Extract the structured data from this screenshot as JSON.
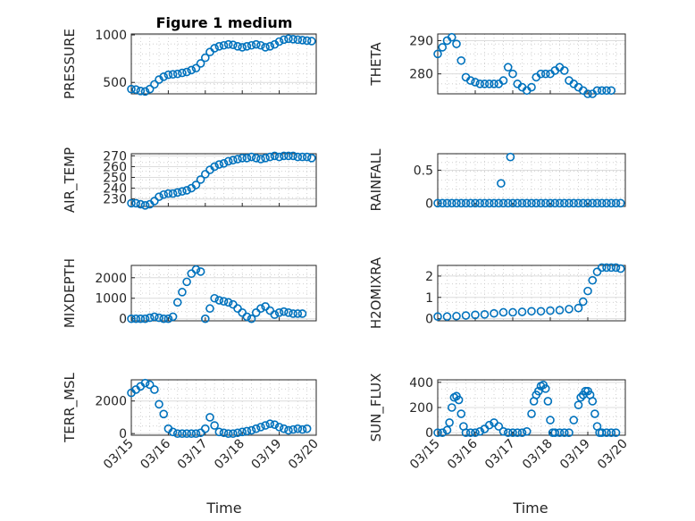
{
  "figure": {
    "title": "Figure 1 medium",
    "xlabel": "Time",
    "marker_color": "#0072BD",
    "xticks": [
      "03/15",
      "03/16",
      "03/17",
      "03/18",
      "03/19",
      "03/20"
    ]
  },
  "chart_data": [
    {
      "type": "scatter",
      "ylabel": "PRESSURE",
      "yticks": [
        500,
        1000
      ],
      "ylim": [
        380,
        1010
      ],
      "xlim": [
        0,
        4
      ],
      "grid": true,
      "x": [
        0,
        0.1,
        0.2,
        0.3,
        0.4,
        0.5,
        0.6,
        0.7,
        0.8,
        0.9,
        1.0,
        1.1,
        1.2,
        1.3,
        1.4,
        1.5,
        1.6,
        1.7,
        1.8,
        1.9,
        2.0,
        2.1,
        2.2,
        2.3,
        2.4,
        2.5,
        2.6,
        2.7,
        2.8,
        2.9,
        3.0,
        3.1,
        3.2,
        3.3,
        3.4,
        3.5,
        3.6,
        3.7,
        3.8,
        3.9
      ],
      "y": [
        430,
        425,
        410,
        405,
        430,
        480,
        530,
        560,
        580,
        585,
        590,
        600,
        610,
        630,
        650,
        700,
        760,
        820,
        860,
        880,
        890,
        900,
        895,
        880,
        870,
        880,
        890,
        900,
        890,
        870,
        880,
        900,
        930,
        950,
        960,
        955,
        950,
        945,
        940,
        935
      ]
    },
    {
      "type": "scatter",
      "ylabel": "THETA",
      "yticks": [
        280,
        290
      ],
      "ylim": [
        274,
        292
      ],
      "xlim": [
        0,
        4
      ],
      "grid": true,
      "x": [
        0,
        0.1,
        0.2,
        0.3,
        0.4,
        0.5,
        0.6,
        0.7,
        0.8,
        0.9,
        1.0,
        1.1,
        1.2,
        1.3,
        1.4,
        1.5,
        1.6,
        1.7,
        1.8,
        1.9,
        2.0,
        2.1,
        2.2,
        2.3,
        2.4,
        2.5,
        2.6,
        2.7,
        2.8,
        2.9,
        3.0,
        3.1,
        3.2,
        3.3,
        3.4,
        3.5,
        3.6,
        3.7
      ],
      "y": [
        286,
        288,
        290,
        291,
        289,
        284,
        279,
        278,
        277.5,
        277,
        277,
        277,
        277,
        277,
        278,
        282,
        280,
        277,
        276,
        275,
        276,
        279,
        280,
        280,
        280,
        281,
        282,
        281,
        278,
        277,
        276,
        275,
        274,
        274,
        275,
        275,
        275,
        275
      ]
    },
    {
      "type": "scatter",
      "ylabel": "AIR_TEMP",
      "yticks": [
        230,
        240,
        250,
        260,
        270
      ],
      "ylim": [
        223,
        272
      ],
      "xlim": [
        0,
        4
      ],
      "grid": true,
      "x": [
        0,
        0.1,
        0.2,
        0.3,
        0.4,
        0.5,
        0.6,
        0.7,
        0.8,
        0.9,
        1.0,
        1.1,
        1.2,
        1.3,
        1.4,
        1.5,
        1.6,
        1.7,
        1.8,
        1.9,
        2.0,
        2.1,
        2.2,
        2.3,
        2.4,
        2.5,
        2.6,
        2.7,
        2.8,
        2.9,
        3.0,
        3.1,
        3.2,
        3.3,
        3.4,
        3.5,
        3.6,
        3.7,
        3.8,
        3.9
      ],
      "y": [
        226,
        226,
        225,
        224,
        225,
        228,
        232,
        234,
        235,
        235,
        236,
        237,
        238,
        240,
        243,
        248,
        253,
        257,
        260,
        262,
        263,
        265,
        266,
        267,
        268,
        268,
        269,
        268,
        267,
        268,
        269,
        270,
        269,
        270,
        270,
        270,
        269,
        269,
        269,
        268
      ]
    },
    {
      "type": "scatter",
      "ylabel": "RAINFALL",
      "yticks": [
        0,
        0.5
      ],
      "ylim": [
        -0.05,
        0.75
      ],
      "xlim": [
        0,
        4
      ],
      "grid": true,
      "x": [
        0,
        0.1,
        0.2,
        0.3,
        0.4,
        0.5,
        0.6,
        0.7,
        0.8,
        0.9,
        1.0,
        1.1,
        1.2,
        1.3,
        1.4,
        1.5,
        1.6,
        1.7,
        1.8,
        1.9,
        2.0,
        2.1,
        2.2,
        2.3,
        2.4,
        2.5,
        2.6,
        2.7,
        2.8,
        2.9,
        3.0,
        3.1,
        3.2,
        3.3,
        3.4,
        3.5,
        3.6,
        3.7,
        3.8,
        3.9,
        1.35,
        1.55
      ],
      "y": [
        0,
        0,
        0,
        0,
        0,
        0,
        0,
        0,
        0,
        0,
        0,
        0,
        0,
        0,
        0,
        0,
        0,
        0,
        0,
        0,
        0,
        0,
        0,
        0,
        0,
        0,
        0,
        0,
        0,
        0,
        0,
        0,
        0,
        0,
        0,
        0,
        0,
        0,
        0,
        0,
        0.3,
        0.7
      ]
    },
    {
      "type": "scatter",
      "ylabel": "MIXDEPTH",
      "yticks": [
        0,
        1000,
        2000
      ],
      "ylim": [
        -100,
        2600
      ],
      "xlim": [
        0,
        4
      ],
      "grid": true,
      "x": [
        0,
        0.1,
        0.2,
        0.3,
        0.4,
        0.5,
        0.6,
        0.7,
        0.8,
        0.9,
        1.0,
        1.1,
        1.2,
        1.3,
        1.4,
        1.5,
        1.6,
        1.7,
        1.8,
        1.9,
        2.0,
        2.1,
        2.2,
        2.3,
        2.4,
        2.5,
        2.6,
        2.7,
        2.8,
        2.9,
        3.0,
        3.1,
        3.2,
        3.3,
        3.4,
        3.5,
        3.6,
        3.7
      ],
      "y": [
        0,
        0,
        0,
        0,
        50,
        100,
        50,
        0,
        0,
        100,
        800,
        1300,
        1800,
        2200,
        2400,
        2300,
        0,
        500,
        1000,
        900,
        850,
        800,
        700,
        500,
        300,
        100,
        0,
        300,
        500,
        600,
        400,
        200,
        300,
        350,
        300,
        250,
        250,
        250
      ]
    },
    {
      "type": "scatter",
      "ylabel": "H2OMIXRA",
      "yticks": [
        0,
        1,
        2
      ],
      "ylim": [
        -0.1,
        2.5
      ],
      "xlim": [
        0,
        4
      ],
      "grid": true,
      "x": [
        0,
        0.2,
        0.4,
        0.6,
        0.8,
        1.0,
        1.2,
        1.4,
        1.6,
        1.8,
        2.0,
        2.2,
        2.4,
        2.6,
        2.8,
        3.0,
        3.1,
        3.2,
        3.3,
        3.4,
        3.5,
        3.6,
        3.7,
        3.8,
        3.9
      ],
      "y": [
        0.1,
        0.1,
        0.12,
        0.15,
        0.18,
        0.2,
        0.25,
        0.3,
        0.3,
        0.32,
        0.35,
        0.35,
        0.38,
        0.4,
        0.45,
        0.5,
        0.8,
        1.3,
        1.8,
        2.2,
        2.4,
        2.4,
        2.4,
        2.4,
        2.35
      ]
    },
    {
      "type": "scatter",
      "ylabel": "TERR_MSL",
      "yticks": [
        0,
        2000
      ],
      "ylim": [
        -100,
        3300
      ],
      "xlim": [
        0,
        4
      ],
      "grid": true,
      "x": [
        0,
        0.1,
        0.2,
        0.3,
        0.4,
        0.5,
        0.6,
        0.7,
        0.8,
        0.9,
        1.0,
        1.1,
        1.2,
        1.3,
        1.4,
        1.5,
        1.6,
        1.7,
        1.8,
        1.9,
        2.0,
        2.1,
        2.2,
        2.3,
        2.4,
        2.5,
        2.6,
        2.7,
        2.8,
        2.9,
        3.0,
        3.1,
        3.2,
        3.3,
        3.4,
        3.5,
        3.6,
        3.7,
        3.8
      ],
      "y": [
        2500,
        2700,
        2900,
        3100,
        3000,
        2700,
        1800,
        1200,
        300,
        100,
        0,
        0,
        0,
        0,
        0,
        50,
        300,
        1000,
        500,
        100,
        50,
        0,
        0,
        50,
        100,
        150,
        200,
        300,
        400,
        500,
        600,
        550,
        400,
        300,
        200,
        250,
        300,
        250,
        300
      ]
    },
    {
      "type": "scatter",
      "ylabel": "SUN_FLUX",
      "yticks": [
        0,
        200,
        400
      ],
      "ylim": [
        -20,
        420
      ],
      "xlim": [
        0,
        4
      ],
      "grid": true,
      "x": [
        0,
        0.1,
        0.2,
        0.25,
        0.3,
        0.35,
        0.4,
        0.45,
        0.5,
        0.55,
        0.6,
        0.7,
        0.8,
        0.9,
        1.0,
        1.1,
        1.2,
        1.3,
        1.4,
        1.5,
        1.6,
        1.7,
        1.8,
        1.9,
        2.0,
        2.05,
        2.1,
        2.15,
        2.2,
        2.25,
        2.3,
        2.35,
        2.4,
        2.45,
        2.5,
        2.6,
        2.7,
        2.8,
        2.9,
        3.0,
        3.05,
        3.1,
        3.15,
        3.2,
        3.25,
        3.3,
        3.35,
        3.4,
        3.45,
        3.5,
        3.6,
        3.7,
        3.8
      ],
      "y": [
        0,
        0,
        20,
        80,
        200,
        280,
        290,
        260,
        150,
        50,
        0,
        0,
        0,
        10,
        30,
        60,
        80,
        50,
        10,
        0,
        0,
        0,
        0,
        10,
        150,
        250,
        300,
        330,
        370,
        380,
        350,
        250,
        100,
        0,
        0,
        0,
        0,
        0,
        100,
        220,
        280,
        300,
        330,
        330,
        300,
        250,
        150,
        50,
        0,
        0,
        0,
        0,
        0
      ]
    }
  ]
}
